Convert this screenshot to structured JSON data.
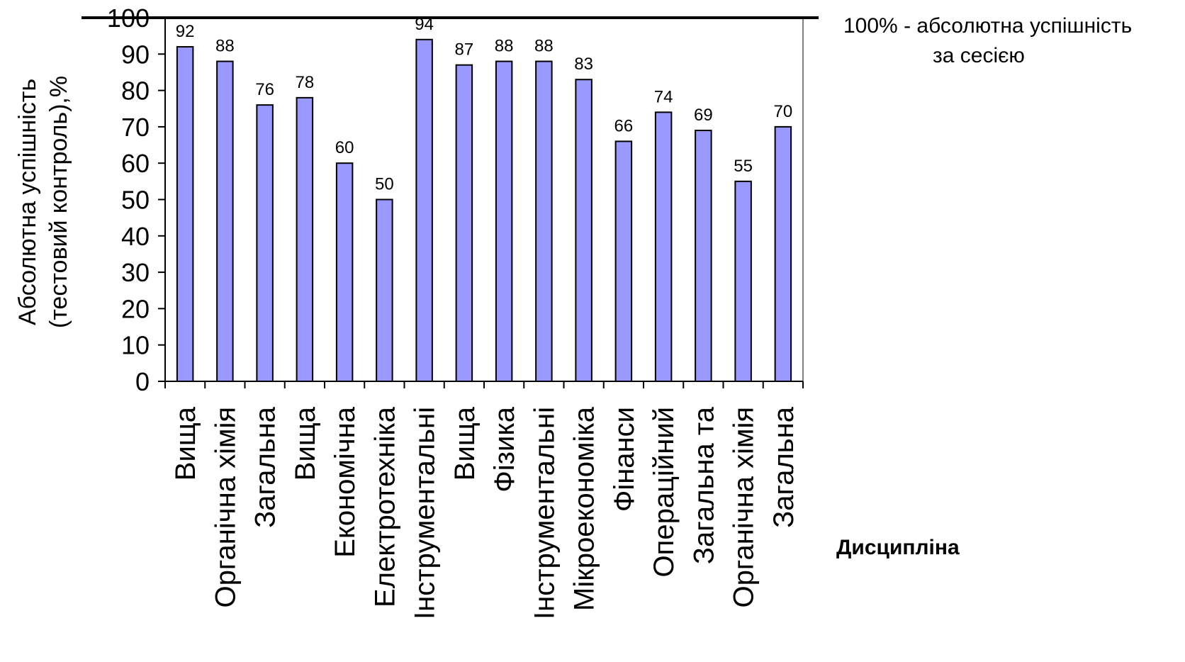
{
  "chart_data": {
    "type": "bar",
    "categories": [
      "Вища",
      "Органічна хімія",
      "Загальна",
      "Вища",
      "Економічна",
      "Електротехніка",
      "Інструментальні",
      "Вища",
      "Фізика",
      "Інструментальні",
      "Мікроекономіка",
      "Фінанси",
      "Операційний",
      "Загальна та",
      "Органічна хімія",
      "Загальна"
    ],
    "values": [
      92,
      88,
      76,
      78,
      60,
      50,
      94,
      87,
      88,
      88,
      83,
      66,
      74,
      69,
      55,
      70
    ],
    "ylabel_lines": [
      "Абсолютна успішність",
      "(тестовий контроль),%"
    ],
    "xlabel": "Дисципліна",
    "ylim": [
      0,
      100
    ],
    "yticks": [
      0,
      10,
      20,
      30,
      40,
      50,
      60,
      70,
      80,
      90,
      100
    ],
    "reference_line": {
      "value": 100,
      "label_lines": [
        "100% - абсолютна успішність",
        "за сесією"
      ]
    },
    "bar_color": "#9999ff",
    "grid": false
  }
}
